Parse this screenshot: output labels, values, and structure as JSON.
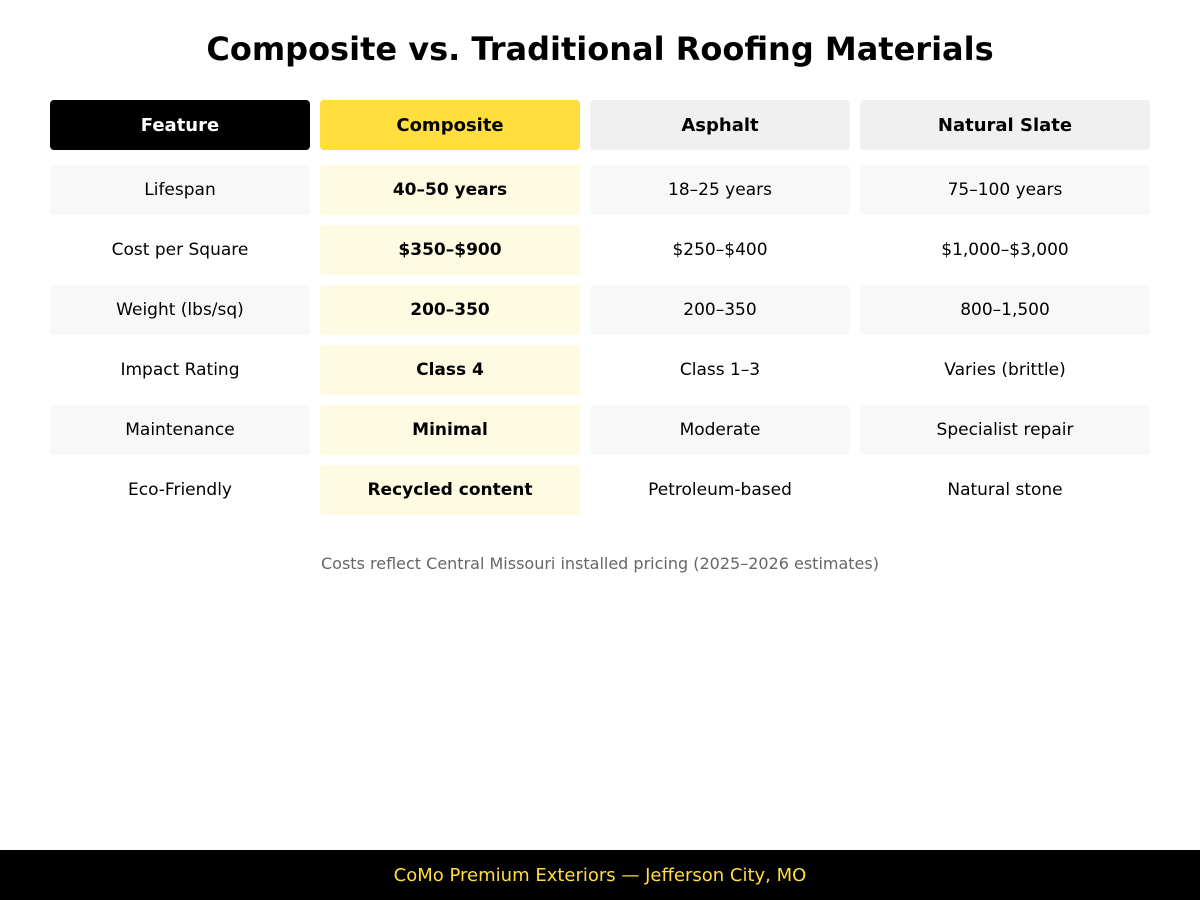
{
  "title": "Composite vs. Traditional Roofing Materials",
  "colors": {
    "accent_yellow": "#ffde3d",
    "highlight_cell": "#fffbe3",
    "header_dark": "#000000",
    "header_gray": "#f0f0f0",
    "row_shade": "#f8f8f8",
    "note_text": "#666666"
  },
  "table": {
    "headers": [
      "Feature",
      "Composite",
      "Asphalt",
      "Natural Slate"
    ],
    "rows": [
      [
        "Lifespan",
        "40–50 years",
        "18–25 years",
        "75–100 years"
      ],
      [
        "Cost per Square",
        "$350–$900",
        "$250–$400",
        "$1,000–$3,000"
      ],
      [
        "Weight (lbs/sq)",
        "200–350",
        "200–350",
        "800–1,500"
      ],
      [
        "Impact Rating",
        "Class 4",
        "Class 1–3",
        "Varies (brittle)"
      ],
      [
        "Maintenance",
        "Minimal",
        "Moderate",
        "Specialist repair"
      ],
      [
        "Eco-Friendly",
        "Recycled content",
        "Petroleum-based",
        "Natural stone"
      ]
    ]
  },
  "note": "Costs reflect Central Missouri installed pricing (2025–2026 estimates)",
  "footer": "CoMo Premium Exteriors — Jefferson City, MO"
}
